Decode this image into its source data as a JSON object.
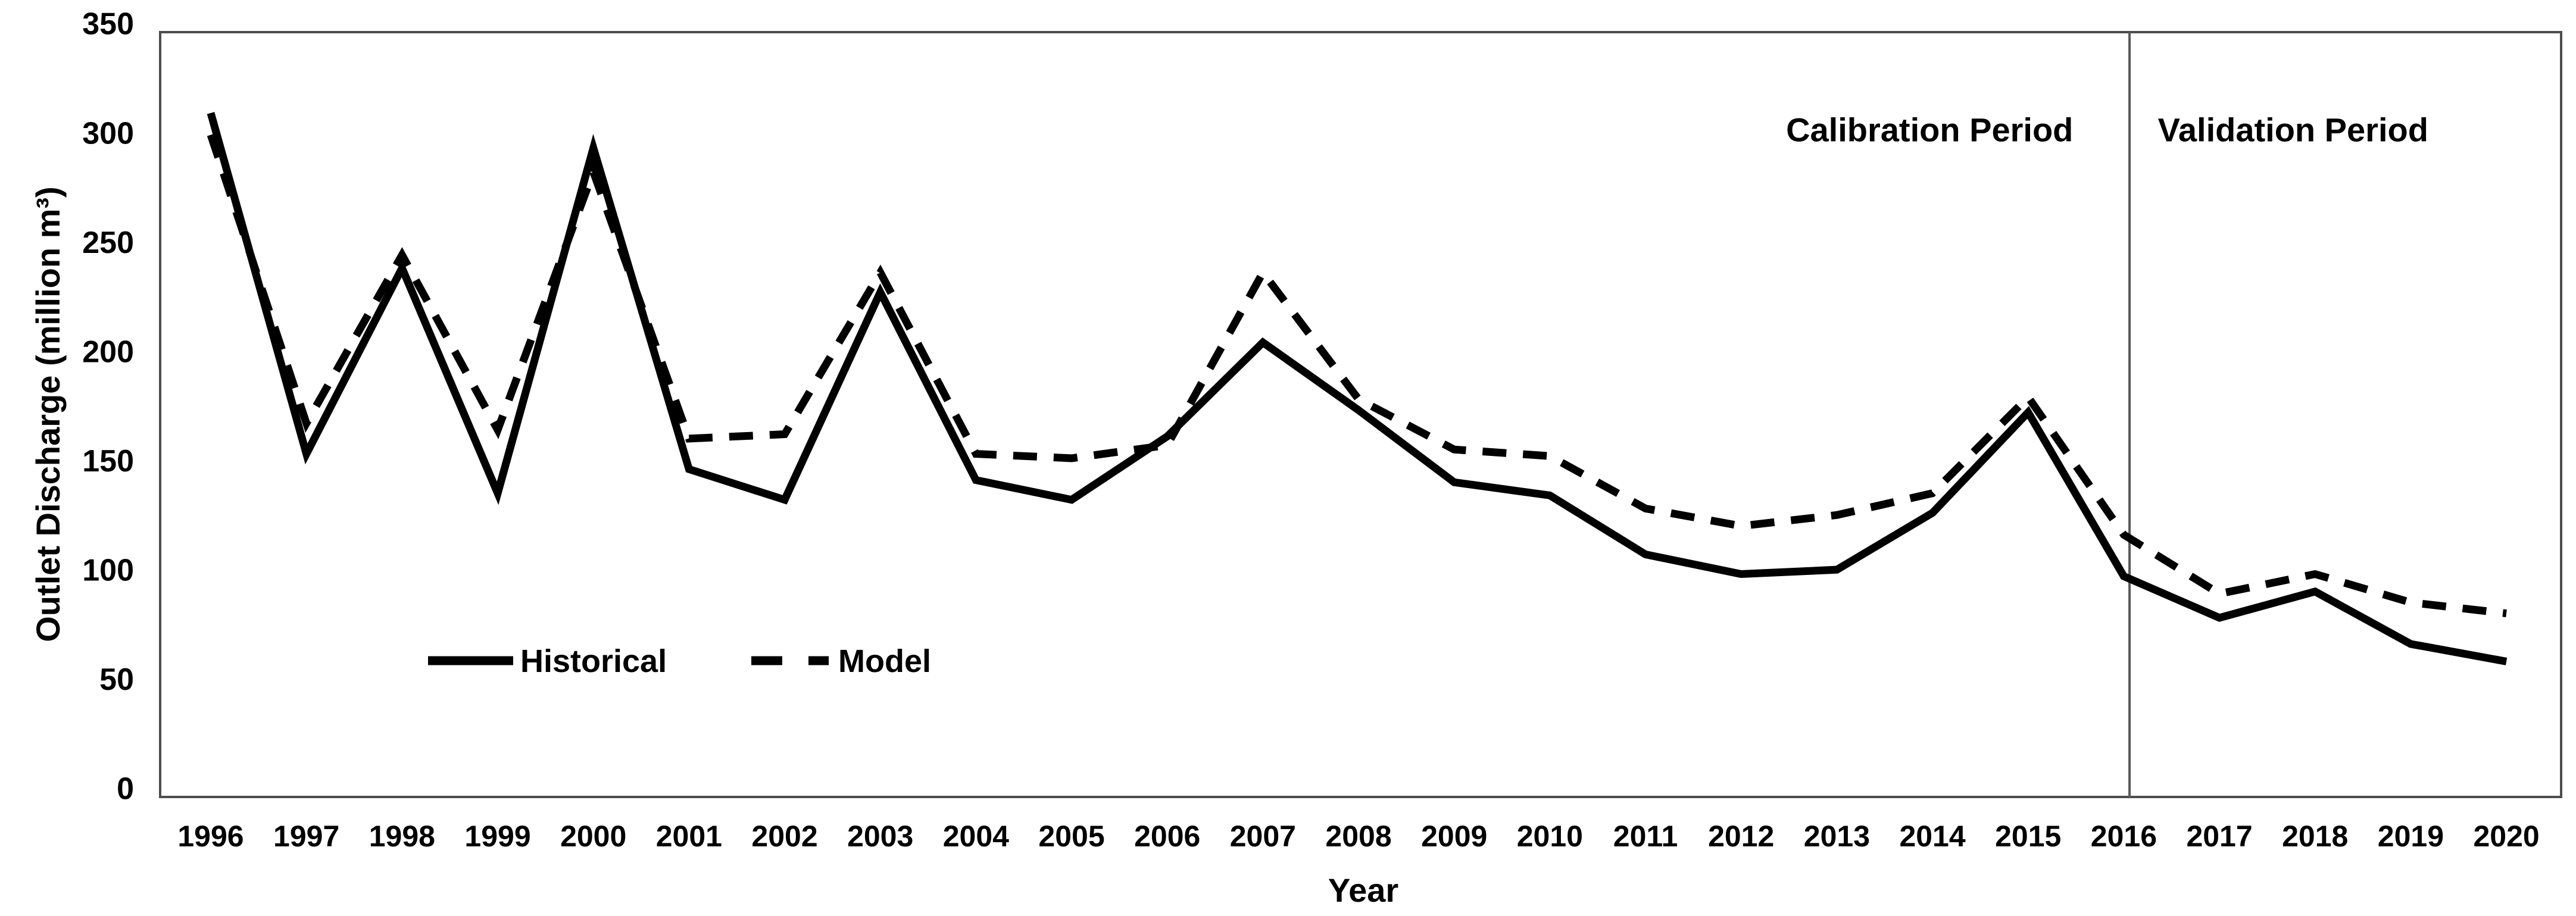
{
  "chart_data": {
    "type": "line",
    "title": "",
    "xlabel": "Year",
    "ylabel": "Outlet Discharge (million m³)",
    "ylim": [
      0,
      350
    ],
    "ytick_step": 50,
    "ytick_labels": [
      "0",
      "50",
      "100",
      "150",
      "200",
      "250",
      "300",
      "350"
    ],
    "grid": false,
    "legend_position": "inside-lower-left",
    "categories": [
      "1996",
      "1997",
      "1998",
      "1999",
      "2000",
      "2001",
      "2002",
      "2003",
      "2004",
      "2005",
      "2006",
      "2007",
      "2008",
      "2009",
      "2010",
      "2011",
      "2012",
      "2013",
      "2014",
      "2015",
      "2016",
      "2017",
      "2018",
      "2019",
      "2020"
    ],
    "series": [
      {
        "name": "Historical",
        "style": "solid",
        "values": [
          313,
          157,
          242,
          139,
          297,
          150,
          136,
          231,
          145,
          136,
          165,
          208,
          177,
          144,
          138,
          111,
          102,
          104,
          130,
          176,
          101,
          82,
          94,
          70,
          62
        ]
      },
      {
        "name": "Model",
        "style": "dashed",
        "values": [
          303,
          171,
          248,
          168,
          286,
          164,
          166,
          240,
          157,
          155,
          161,
          240,
          182,
          159,
          156,
          132,
          124,
          129,
          139,
          183,
          120,
          93,
          102,
          89,
          84
        ]
      }
    ],
    "annotations": [
      {
        "text": "Calibration Period",
        "x_index": 17.97,
        "y_value": 304
      },
      {
        "text": "Validation Period",
        "x_index": 21.77,
        "y_value": 304
      }
    ],
    "divider": {
      "after_year": "2016",
      "x_index": 20.06
    },
    "legend": {
      "items": [
        {
          "label": "Historical",
          "style": "solid"
        },
        {
          "label": "Model",
          "style": "dashed"
        }
      ]
    },
    "colors": {
      "line": "#000000",
      "plot_border": "#4d4d4d",
      "divider_line": "#595959",
      "text": "#000000",
      "background": "#ffffff"
    }
  }
}
